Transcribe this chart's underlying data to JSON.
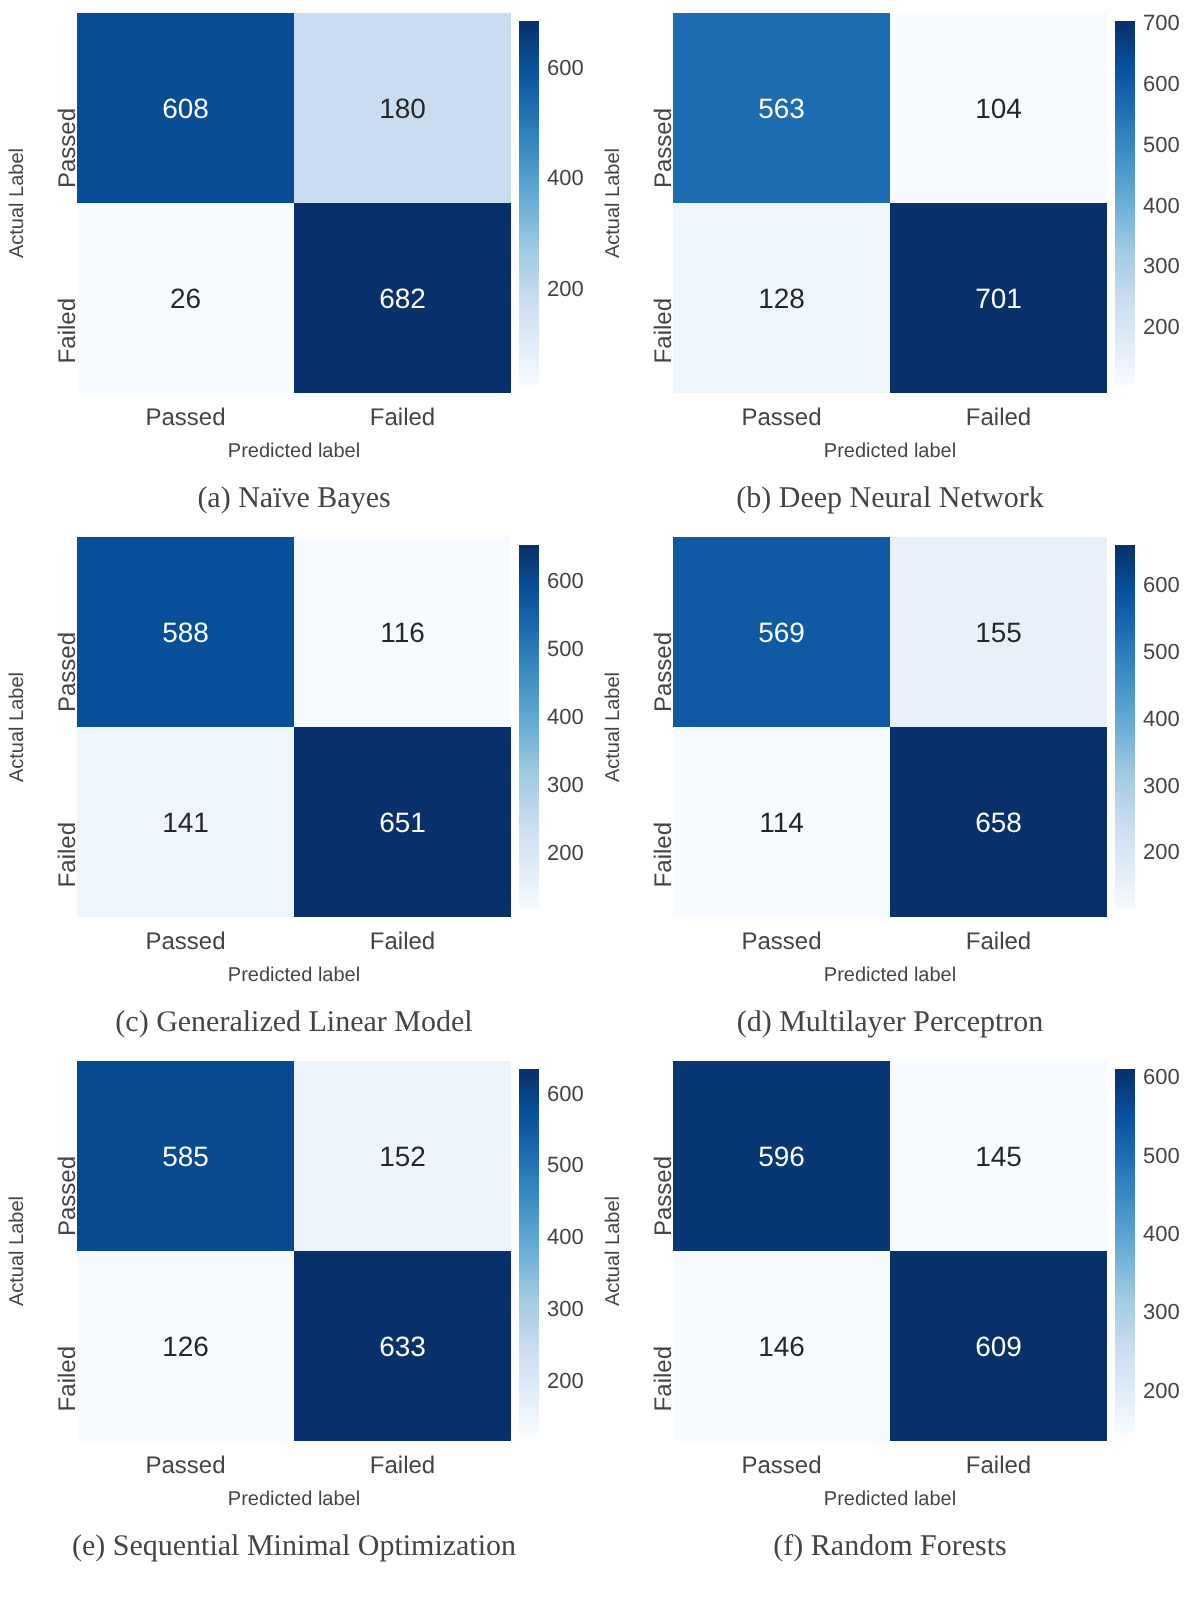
{
  "chart_data": [
    {
      "type": "heatmap",
      "title": "(a) Naïve Bayes",
      "xlabel": "Predicted label",
      "ylabel": "Actual Label",
      "categories": [
        "Passed",
        "Failed"
      ],
      "y_categories": [
        "Passed",
        "Failed"
      ],
      "cells": [
        [
          608,
          180
        ],
        [
          26,
          682
        ]
      ],
      "clim": [
        26,
        682
      ],
      "cticks": [
        200,
        400,
        600
      ],
      "data_labels": true
    },
    {
      "type": "heatmap",
      "title": "(b) Deep Neural Network",
      "xlabel": "Predicted label",
      "ylabel": "Actual Label",
      "categories": [
        "Passed",
        "Failed"
      ],
      "y_categories": [
        "Passed",
        "Failed"
      ],
      "cells": [
        [
          563,
          104
        ],
        [
          128,
          701
        ]
      ],
      "clim": [
        104,
        701
      ],
      "cticks": [
        200,
        300,
        400,
        500,
        600,
        700
      ],
      "data_labels": true
    },
    {
      "type": "heatmap",
      "title": "(c) Generalized Linear Model",
      "xlabel": "Predicted label",
      "ylabel": "Actual Label",
      "categories": [
        "Passed",
        "Failed"
      ],
      "y_categories": [
        "Passed",
        "Failed"
      ],
      "cells": [
        [
          588,
          116
        ],
        [
          141,
          651
        ]
      ],
      "clim": [
        116,
        651
      ],
      "cticks": [
        200,
        300,
        400,
        500,
        600
      ],
      "data_labels": true
    },
    {
      "type": "heatmap",
      "title": "(d) Multilayer Perceptron",
      "xlabel": "Predicted label",
      "ylabel": "Actual Label",
      "categories": [
        "Passed",
        "Failed"
      ],
      "y_categories": [
        "Passed",
        "Failed"
      ],
      "cells": [
        [
          569,
          155
        ],
        [
          114,
          658
        ]
      ],
      "clim": [
        114,
        658
      ],
      "cticks": [
        200,
        300,
        400,
        500,
        600
      ],
      "data_labels": true
    },
    {
      "type": "heatmap",
      "title": "(e) Sequential Minimal Optimization",
      "xlabel": "Predicted label",
      "ylabel": "Actual Label",
      "categories": [
        "Passed",
        "Failed"
      ],
      "y_categories": [
        "Passed",
        "Failed"
      ],
      "cells": [
        [
          585,
          152
        ],
        [
          126,
          633
        ]
      ],
      "clim": [
        126,
        633
      ],
      "cticks": [
        200,
        300,
        400,
        500,
        600
      ],
      "data_labels": true
    },
    {
      "type": "heatmap",
      "title": "(f) Random Forests",
      "xlabel": "Predicted label",
      "ylabel": "Actual Label",
      "categories": [
        "Passed",
        "Failed"
      ],
      "y_categories": [
        "Passed",
        "Failed"
      ],
      "cells": [
        [
          596,
          145
        ],
        [
          146,
          609
        ]
      ],
      "clim": [
        145,
        609
      ],
      "cticks": [
        200,
        300,
        400,
        500,
        600
      ],
      "data_labels": true
    }
  ]
}
